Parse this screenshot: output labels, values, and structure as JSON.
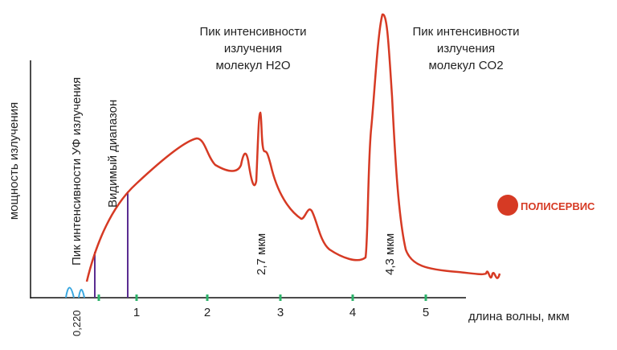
{
  "labels": {
    "y_axis": "мощность излучения",
    "x_axis": "длина волны, мкм",
    "uv_peak": "Пик интенсивности УФ излучения",
    "visible": "Видимый диапазон",
    "uv_wavelength": "0,220",
    "h2o_peak": [
      "Пик интенсивности",
      "излучения",
      "молекул H2O"
    ],
    "co2_peak": [
      "Пик интенсивности",
      "излучения",
      "молекул CO2"
    ],
    "h2o_wavelength": "2,7 мкм",
    "co2_wavelength": "4,3 мкм",
    "logo": "ПОЛИСЕРВИС"
  },
  "x_ticks": [
    "1",
    "2",
    "3",
    "4",
    "5"
  ]
}
